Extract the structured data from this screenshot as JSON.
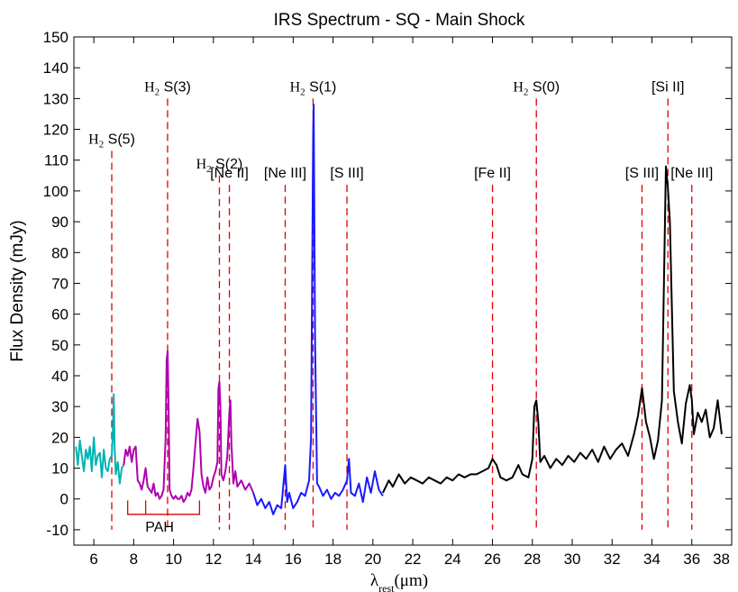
{
  "chart_data": {
    "type": "line",
    "title": "IRS Spectrum - SQ - Main Shock",
    "xlabel": "λrest(μm)",
    "ylabel": "Flux Density (mJy)",
    "xlim": [
      5,
      38
    ],
    "ylim": [
      -15,
      150
    ],
    "x_ticks": [
      6,
      8,
      10,
      12,
      14,
      16,
      18,
      20,
      22,
      24,
      26,
      28,
      30,
      32,
      34,
      36,
      38
    ],
    "y_ticks": [
      -10,
      0,
      10,
      20,
      30,
      40,
      50,
      60,
      70,
      80,
      90,
      100,
      110,
      120,
      130,
      140,
      150
    ],
    "grid": false,
    "colors": {
      "series_1": "#00b3b3",
      "series_2": "#b000b0",
      "series_3": "#1a1aff",
      "series_4": "#000000",
      "line_markers": "#e00000",
      "pah_box": "#e00000"
    },
    "series": [
      {
        "color": "#00b3b3",
        "x": [
          5.1,
          5.2,
          5.3,
          5.4,
          5.5,
          5.6,
          5.7,
          5.8,
          5.9,
          6.0,
          6.1,
          6.2,
          6.3,
          6.4,
          6.5,
          6.6,
          6.7,
          6.8,
          6.9,
          6.95,
          7.0,
          7.05,
          7.1,
          7.2,
          7.3,
          7.4,
          7.5
        ],
        "y": [
          17,
          11,
          19,
          14,
          9,
          16,
          13,
          17,
          9,
          20,
          11,
          14,
          15,
          7,
          16,
          10,
          9,
          13,
          14,
          20,
          34,
          16,
          8,
          12,
          5,
          10,
          11
        ]
      },
      {
        "color": "#b000b0",
        "x": [
          7.5,
          7.6,
          7.7,
          7.8,
          7.9,
          8.0,
          8.1,
          8.2,
          8.3,
          8.4,
          8.5,
          8.6,
          8.7,
          8.8,
          8.9,
          9.0,
          9.1,
          9.2,
          9.3,
          9.4,
          9.5,
          9.6,
          9.65,
          9.7,
          9.75,
          9.8,
          9.9,
          10.0,
          10.1,
          10.2,
          10.3,
          10.4,
          10.5,
          10.6,
          10.7,
          10.8,
          10.9,
          11.0,
          11.1,
          11.2,
          11.3,
          11.4,
          11.5,
          11.6,
          11.7,
          11.8,
          11.9,
          12.0,
          12.1,
          12.2,
          12.25,
          12.3,
          12.35,
          12.4,
          12.5,
          12.6,
          12.7,
          12.8,
          12.85,
          12.9,
          13.0,
          13.1,
          13.2,
          13.4,
          13.6,
          13.8,
          14.0
        ],
        "y": [
          11,
          16,
          14,
          17,
          12,
          16,
          17,
          6,
          5,
          3,
          6,
          10,
          4,
          3,
          2,
          5,
          1,
          2,
          0,
          1,
          3,
          20,
          45,
          48,
          30,
          3,
          1,
          0,
          1,
          0,
          0,
          1,
          -1,
          0,
          2,
          1,
          3,
          10,
          18,
          26,
          22,
          8,
          4,
          2,
          7,
          3,
          4,
          7,
          9,
          12,
          36,
          38,
          30,
          8,
          6,
          9,
          14,
          28,
          32,
          18,
          5,
          9,
          4,
          6,
          3,
          5,
          2
        ]
      },
      {
        "color": "#1a1aff",
        "x": [
          14.0,
          14.2,
          14.4,
          14.6,
          14.8,
          15.0,
          15.2,
          15.4,
          15.5,
          15.6,
          15.7,
          15.8,
          16.0,
          16.2,
          16.4,
          16.6,
          16.8,
          16.9,
          17.0,
          17.03,
          17.1,
          17.2,
          17.3,
          17.5,
          17.7,
          17.9,
          18.1,
          18.3,
          18.5,
          18.7,
          18.8,
          18.9,
          19.1,
          19.3,
          19.5,
          19.7,
          19.9,
          20.1,
          20.3,
          20.5
        ],
        "y": [
          2,
          -2,
          0,
          -3,
          -1,
          -5,
          -2,
          -3,
          4,
          11,
          -1,
          2,
          -3,
          -1,
          2,
          1,
          6,
          20,
          118,
          128,
          50,
          5,
          4,
          1,
          3,
          0,
          2,
          1,
          3,
          6,
          13,
          2,
          1,
          5,
          -1,
          7,
          2,
          9,
          3,
          1
        ]
      },
      {
        "color": "#000000",
        "x": [
          20.5,
          20.8,
          21.0,
          21.3,
          21.6,
          21.9,
          22.2,
          22.5,
          22.8,
          23.1,
          23.4,
          23.7,
          24.0,
          24.3,
          24.6,
          24.9,
          25.2,
          25.5,
          25.8,
          26.0,
          26.2,
          26.4,
          26.7,
          27.0,
          27.3,
          27.5,
          27.8,
          28.0,
          28.1,
          28.2,
          28.3,
          28.4,
          28.6,
          28.9,
          29.2,
          29.5,
          29.8,
          30.1,
          30.4,
          30.7,
          31.0,
          31.3,
          31.6,
          31.9,
          32.2,
          32.5,
          32.8,
          33.1,
          33.3,
          33.5,
          33.7,
          33.9,
          34.1,
          34.3,
          34.5,
          34.7,
          34.8,
          34.9,
          35.1,
          35.3,
          35.5,
          35.7,
          35.9,
          36.0,
          36.1,
          36.3,
          36.5,
          36.7,
          36.9,
          37.1,
          37.3,
          37.5
        ],
        "y": [
          2,
          6,
          4,
          8,
          5,
          7,
          6,
          5,
          7,
          6,
          5,
          7,
          6,
          8,
          7,
          8,
          8,
          9,
          10,
          13,
          11,
          7,
          6,
          7,
          11,
          8,
          7,
          13,
          30,
          32,
          25,
          12,
          14,
          10,
          13,
          11,
          14,
          12,
          15,
          13,
          16,
          12,
          17,
          13,
          16,
          18,
          14,
          21,
          27,
          36,
          25,
          20,
          13,
          19,
          32,
          108,
          101,
          90,
          35,
          25,
          18,
          31,
          37,
          32,
          21,
          28,
          25,
          29,
          20,
          23,
          32,
          21
        ]
      }
    ],
    "line_markers": [
      {
        "x": 6.9,
        "y_top": 113,
        "label_base": "H",
        "label_sub": "2",
        "label_rest": " S(5)"
      },
      {
        "x": 9.7,
        "y_top": 130,
        "label_base": "H",
        "label_sub": "2",
        "label_rest": " S(3)"
      },
      {
        "x": 12.3,
        "y_top": 105,
        "label_base": "H",
        "label_sub": "2",
        "label_rest": " S(2)"
      },
      {
        "x": 12.8,
        "y_top": 102,
        "label": "[Ne II]"
      },
      {
        "x": 15.6,
        "y_top": 102,
        "label": "[Ne III]"
      },
      {
        "x": 17.0,
        "y_top": 130,
        "label_base": "H",
        "label_sub": "2",
        "label_rest": " S(1)"
      },
      {
        "x": 18.7,
        "y_top": 102,
        "label": "[S III]"
      },
      {
        "x": 26.0,
        "y_top": 102,
        "label": "[Fe II]"
      },
      {
        "x": 28.2,
        "y_top": 130,
        "label_base": "H",
        "label_sub": "2",
        "label_rest": " S(0)"
      },
      {
        "x": 33.5,
        "y_top": 102,
        "label": "[S III]"
      },
      {
        "x": 34.8,
        "y_top": 130,
        "label": "[Si II]"
      },
      {
        "x": 36.0,
        "y_top": 102,
        "label": "[Ne III]"
      }
    ],
    "pah": {
      "label": "PAH",
      "x_start": 7.7,
      "x_mid": 8.6,
      "x_end": 11.3,
      "y_top": -5,
      "y_base": -0.5
    }
  }
}
